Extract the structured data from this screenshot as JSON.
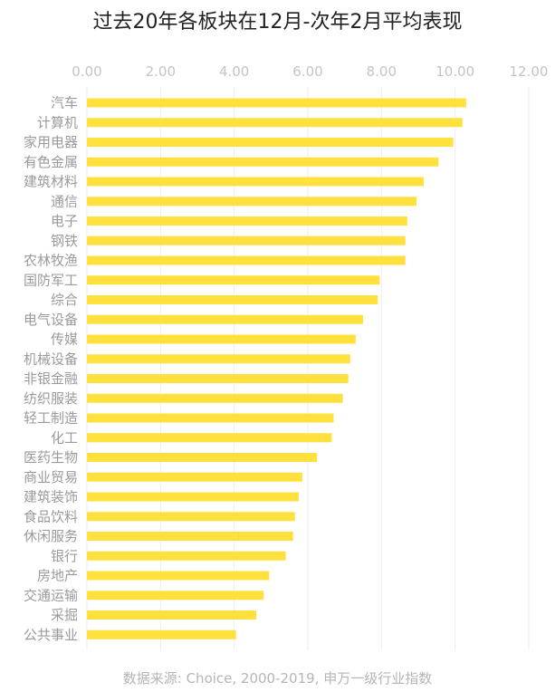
{
  "chart_data": {
    "type": "bar",
    "orientation": "horizontal",
    "title": "过去20年各板块在12月-次年2月平均表现",
    "source": "数据来源: Choice, 2000-2019, 申万一级行业指数",
    "xlim": [
      0,
      12
    ],
    "xticks": [
      "0.00",
      "2.00",
      "4.00",
      "6.00",
      "8.00",
      "10.00",
      "12.00"
    ],
    "x_axis_position": "top",
    "grid": true,
    "bar_color": "#FFE03D",
    "categories": [
      "汽车",
      "计算机",
      "家用电器",
      "有色金属",
      "建筑材料",
      "通信",
      "电子",
      "钢铁",
      "农林牧渔",
      "国防军工",
      "综合",
      "电气设备",
      "传媒",
      "机械设备",
      "非银金融",
      "纺织服装",
      "轻工制造",
      "化工",
      "医药生物",
      "商业贸易",
      "建筑装饰",
      "食品饮料",
      "休闲服务",
      "银行",
      "房地产",
      "交通运输",
      "采掘",
      "公共事业"
    ],
    "values": [
      10.3,
      10.2,
      9.95,
      9.55,
      9.15,
      8.95,
      8.7,
      8.65,
      8.65,
      7.95,
      7.9,
      7.5,
      7.3,
      7.15,
      7.1,
      6.95,
      6.7,
      6.65,
      6.25,
      5.85,
      5.75,
      5.65,
      5.6,
      5.4,
      4.95,
      4.8,
      4.6,
      4.05
    ]
  }
}
